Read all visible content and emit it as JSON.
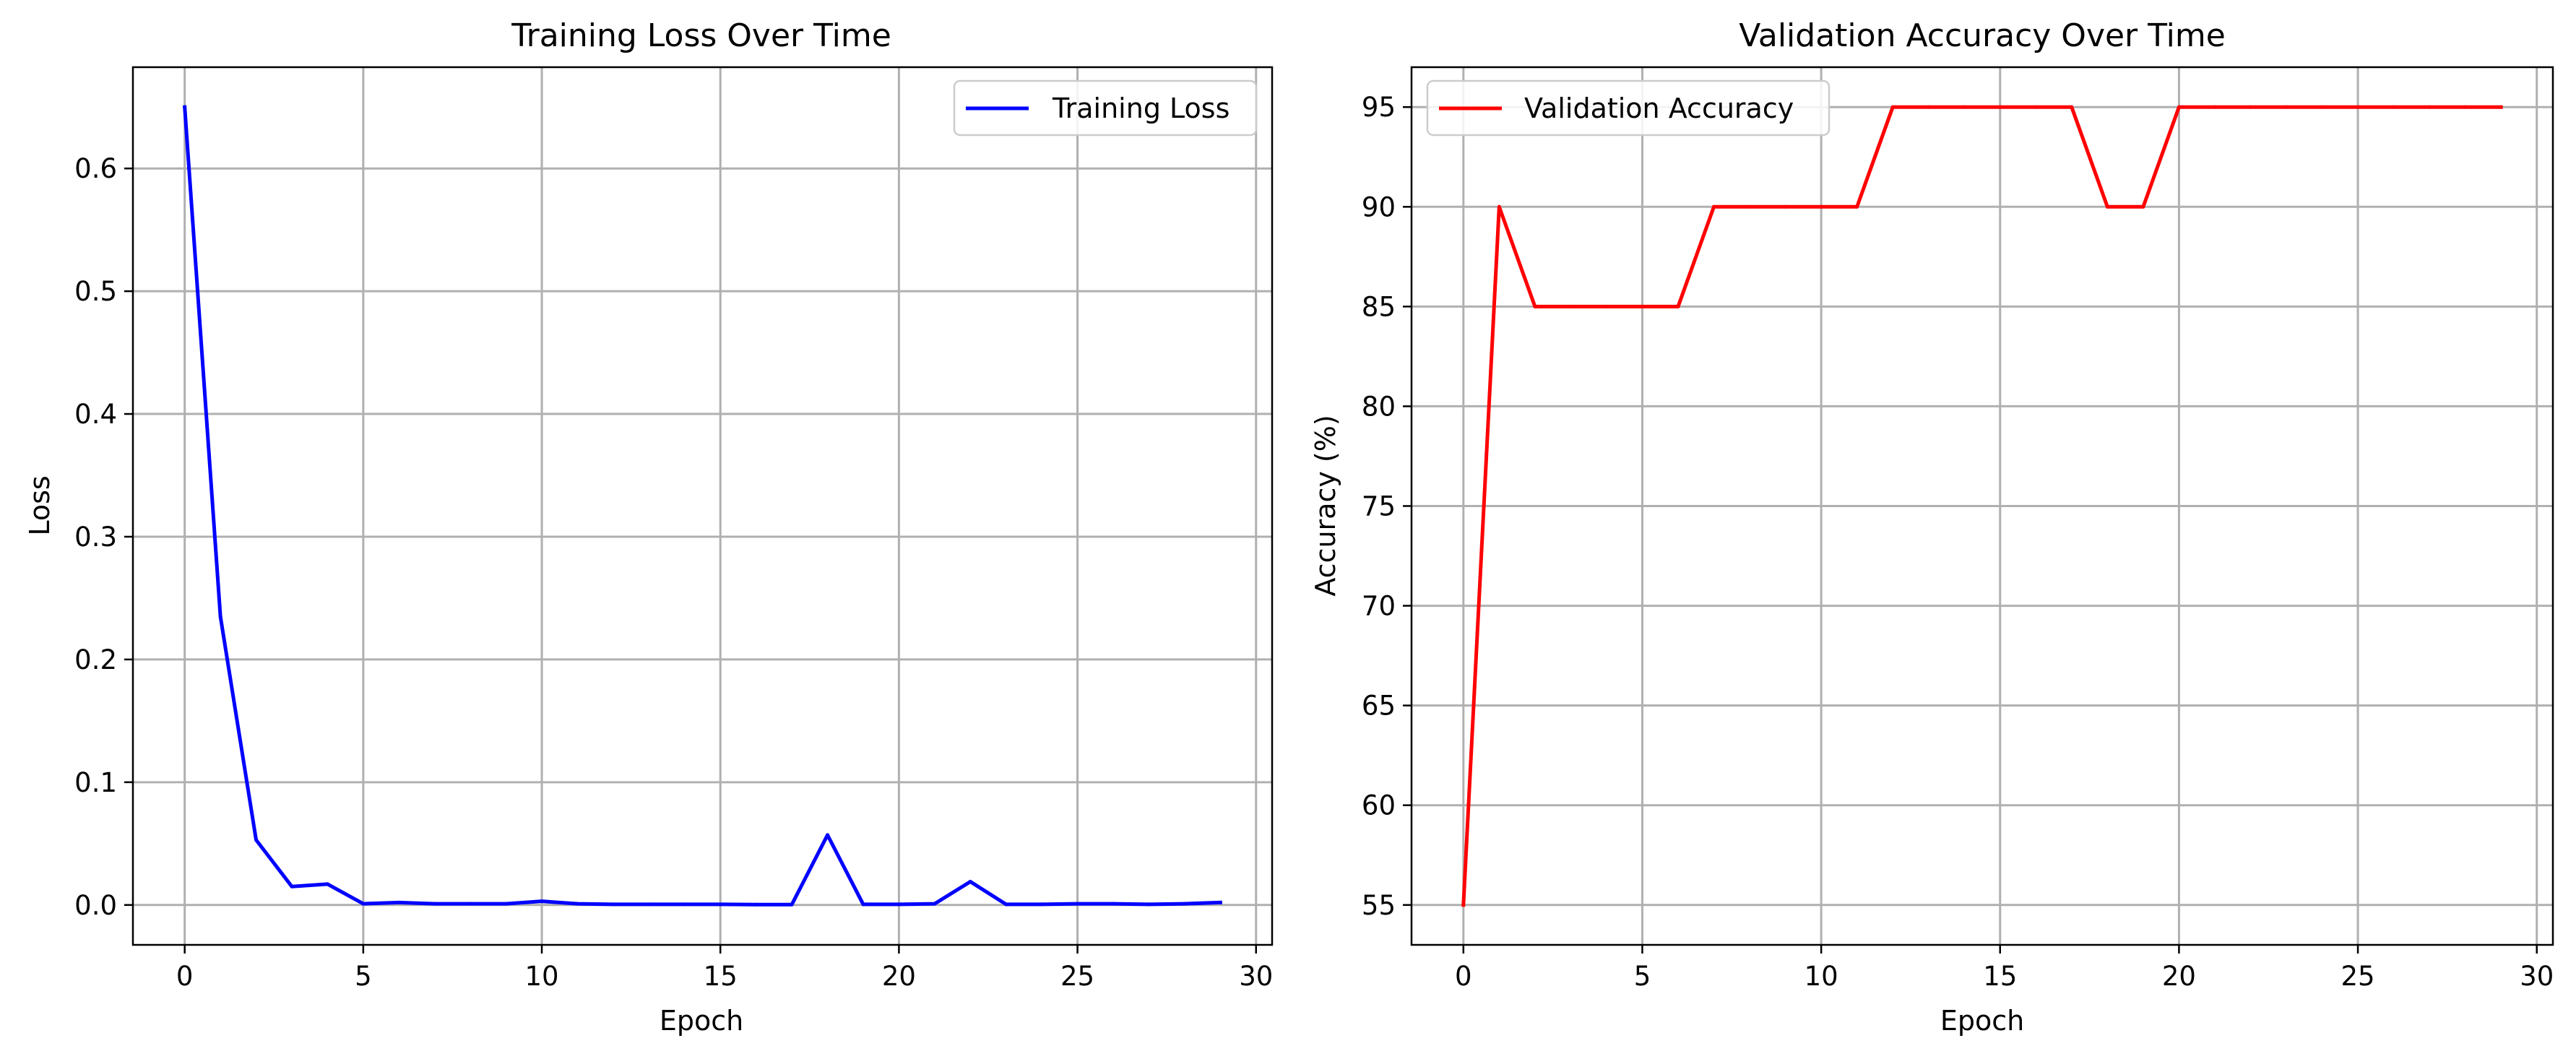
{
  "chart_data": [
    {
      "type": "line",
      "title": "Training Loss Over Time",
      "xlabel": "Epoch",
      "ylabel": "Loss",
      "xlim": [
        -1.45,
        30.45
      ],
      "ylim": [
        -0.0325,
        0.6825
      ],
      "xticks": [
        0,
        5,
        10,
        15,
        20,
        25,
        30
      ],
      "yticks": [
        0.0,
        0.1,
        0.2,
        0.3,
        0.4,
        0.5,
        0.6
      ],
      "ytick_labels": [
        "0.0",
        "0.1",
        "0.2",
        "0.3",
        "0.4",
        "0.5",
        "0.6"
      ],
      "grid": true,
      "legend": "top-right",
      "series": [
        {
          "name": "Training Loss",
          "color": "#0000ff",
          "x": [
            0,
            1,
            2,
            3,
            4,
            5,
            6,
            7,
            8,
            9,
            10,
            11,
            12,
            13,
            14,
            15,
            16,
            17,
            18,
            19,
            20,
            21,
            22,
            23,
            24,
            25,
            26,
            27,
            28,
            29
          ],
          "values": [
            0.65,
            0.235,
            0.053,
            0.015,
            0.017,
            0.001,
            0.002,
            0.001,
            0.001,
            0.001,
            0.003,
            0.001,
            0.0005,
            0.0005,
            0.0005,
            0.0005,
            0.0003,
            0.0003,
            0.057,
            0.0005,
            0.0005,
            0.001,
            0.019,
            0.0005,
            0.0005,
            0.001,
            0.001,
            0.0005,
            0.001,
            0.002
          ]
        }
      ]
    },
    {
      "type": "line",
      "title": "Validation Accuracy Over Time",
      "xlabel": "Epoch",
      "ylabel": "Accuracy (%)",
      "xlim": [
        -1.45,
        30.45
      ],
      "ylim": [
        53.0,
        97.0
      ],
      "xticks": [
        0,
        5,
        10,
        15,
        20,
        25,
        30
      ],
      "yticks": [
        55,
        60,
        65,
        70,
        75,
        80,
        85,
        90,
        95
      ],
      "ytick_labels": [
        "55",
        "60",
        "65",
        "70",
        "75",
        "80",
        "85",
        "90",
        "95"
      ],
      "grid": true,
      "legend": "top-left",
      "series": [
        {
          "name": "Validation Accuracy",
          "color": "#ff0000",
          "x": [
            0,
            1,
            2,
            3,
            4,
            5,
            6,
            7,
            8,
            9,
            10,
            11,
            12,
            13,
            14,
            15,
            16,
            17,
            18,
            19,
            20,
            21,
            22,
            23,
            24,
            25,
            26,
            27,
            28,
            29
          ],
          "values": [
            55,
            90,
            85,
            85,
            85,
            85,
            85,
            90,
            90,
            90,
            90,
            90,
            95,
            95,
            95,
            95,
            95,
            95,
            90,
            90,
            95,
            95,
            95,
            95,
            95,
            95,
            95,
            95,
            95,
            95
          ]
        }
      ]
    }
  ]
}
